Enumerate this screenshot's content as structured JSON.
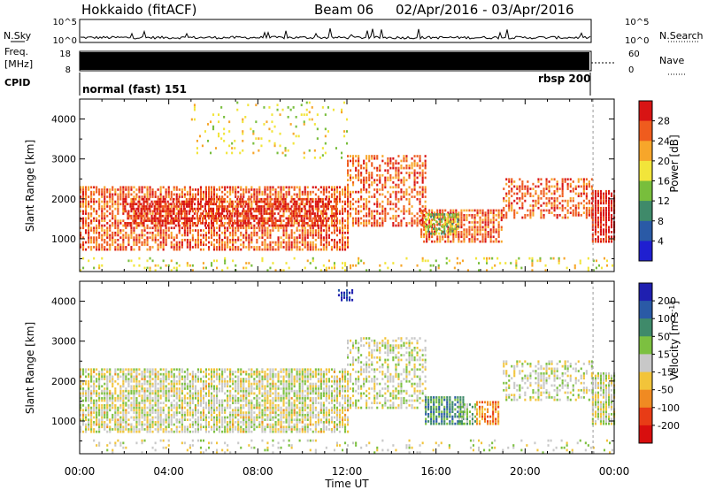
{
  "header": {
    "station": "Hokkaido (fitACF)",
    "beam": "Beam 06",
    "date_range": "02/Apr/2016 - 03/Apr/2016"
  },
  "side_labels": {
    "nsky": "N.Sky",
    "freq": "Freq.",
    "freq_unit": "[MHz]",
    "cpid": "CPID",
    "nsearch": "N.Search",
    "nave": "Nave"
  },
  "noise_axis": {
    "top": "10^5",
    "bottom": "10^0"
  },
  "freq_axis": {
    "left": [
      "18",
      "8"
    ],
    "right": [
      "60",
      "0"
    ]
  },
  "cpid_labels": [
    "normal (fast) 151",
    "rbsp 200"
  ],
  "chart_data": [
    {
      "type": "heatmap",
      "title": "",
      "xlabel": "Time UT",
      "ylabel": "Slant Range [km]",
      "x_ticks": [
        "00:00",
        "04:00",
        "08:00",
        "12:00",
        "16:00",
        "20:00",
        "00:00"
      ],
      "x_range_hours": [
        0,
        24
      ],
      "y_ticks": [
        1000,
        2000,
        3000,
        4000
      ],
      "ylim": [
        180,
        4500
      ],
      "colorbar": {
        "label": "Power [dB]",
        "ticks": [
          "4",
          "8",
          "12",
          "16",
          "20",
          "24",
          "28"
        ],
        "colors": [
          "#1f1fd0",
          "#2a5aa6",
          "#3f8a6a",
          "#78be3c",
          "#f2e53a",
          "#f7a62a",
          "#ef5c1e",
          "#d81414"
        ]
      },
      "bands": [
        {
          "t0": 0.0,
          "t1": 12.0,
          "r0": 700,
          "r1": 2300,
          "level": 6,
          "density": 0.7
        },
        {
          "t0": 2.0,
          "t1": 11.5,
          "r0": 1300,
          "r1": 2000,
          "level": 7,
          "density": 0.6
        },
        {
          "t0": 12.0,
          "t1": 15.5,
          "r0": 1300,
          "r1": 3100,
          "level": 6,
          "density": 0.55
        },
        {
          "t0": 15.3,
          "t1": 19.0,
          "r0": 900,
          "r1": 1700,
          "level": 6,
          "density": 0.75
        },
        {
          "t0": 15.5,
          "t1": 17.0,
          "r0": 1100,
          "r1": 1600,
          "level": 3,
          "density": 0.7
        },
        {
          "t0": 19.0,
          "t1": 23.0,
          "r0": 1500,
          "r1": 2500,
          "level": 6,
          "density": 0.5
        },
        {
          "t0": 23.0,
          "t1": 24.0,
          "r0": 900,
          "r1": 2200,
          "level": 7,
          "density": 0.85
        },
        {
          "t0": 5.0,
          "t1": 12.0,
          "r0": 3000,
          "r1": 4400,
          "level": 4,
          "density": 0.1
        },
        {
          "t0": 0.0,
          "t1": 24.0,
          "r0": 180,
          "r1": 500,
          "level": 4,
          "density": 0.15
        }
      ]
    },
    {
      "type": "heatmap",
      "title": "",
      "xlabel": "Time UT",
      "ylabel": "Slant Range [km]",
      "x_ticks": [
        "00:00",
        "04:00",
        "08:00",
        "12:00",
        "16:00",
        "20:00",
        "00:00"
      ],
      "x_range_hours": [
        0,
        24
      ],
      "y_ticks": [
        1000,
        2000,
        3000,
        4000
      ],
      "ylim": [
        180,
        4500
      ],
      "colorbar": {
        "label": "Velocity [m s^-1]",
        "ticks": [
          "200",
          "100",
          "50",
          "15",
          "-15",
          "-50",
          "-100",
          "-200"
        ],
        "colors": [
          "#1f1fb0",
          "#2a5aa6",
          "#3f8a6a",
          "#7cc040",
          "#c8c8c8",
          "#f2c43a",
          "#f08a22",
          "#e83c16",
          "#d80e0e"
        ]
      },
      "bands": [
        {
          "t0": 0.0,
          "t1": 12.0,
          "r0": 700,
          "r1": 2300,
          "level": 4,
          "density": 0.75
        },
        {
          "t0": 12.0,
          "t1": 15.5,
          "r0": 1300,
          "r1": 3100,
          "level": 4,
          "density": 0.5
        },
        {
          "t0": 15.5,
          "t1": 17.2,
          "r0": 900,
          "r1": 1600,
          "level": 2,
          "density": 0.8
        },
        {
          "t0": 17.0,
          "t1": 17.8,
          "r0": 900,
          "r1": 1400,
          "level": 3,
          "density": 0.8
        },
        {
          "t0": 17.8,
          "t1": 18.8,
          "r0": 900,
          "r1": 1500,
          "level": 6,
          "density": 0.8
        },
        {
          "t0": 19.0,
          "t1": 23.0,
          "r0": 1500,
          "r1": 2500,
          "level": 4,
          "density": 0.45
        },
        {
          "t0": 23.0,
          "t1": 24.0,
          "r0": 900,
          "r1": 2200,
          "level": 4,
          "density": 0.85
        },
        {
          "t0": 11.6,
          "t1": 12.3,
          "r0": 4000,
          "r1": 4300,
          "level": 0,
          "density": 0.6
        },
        {
          "t0": 0.0,
          "t1": 12.0,
          "r0": 700,
          "r1": 2300,
          "level": 5,
          "density": 0.08
        },
        {
          "t0": 0.0,
          "t1": 24.0,
          "r0": 180,
          "r1": 500,
          "level": 4,
          "density": 0.15
        }
      ]
    }
  ]
}
